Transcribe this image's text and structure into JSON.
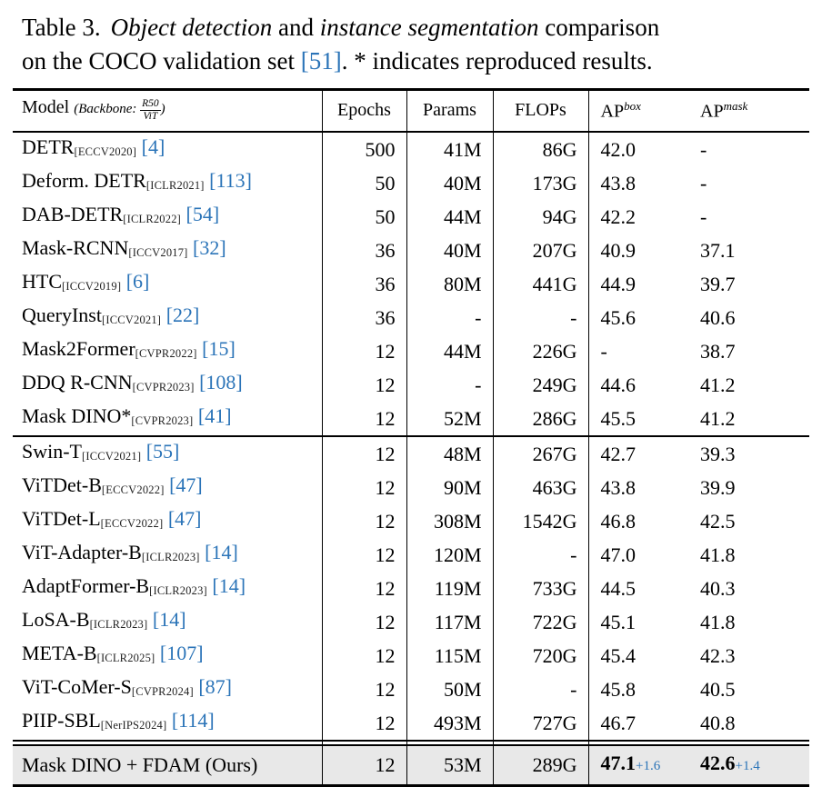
{
  "caption": {
    "label": "Table 3.",
    "line1_italic1": "Object detection",
    "line1_mid": "and",
    "line1_italic2": "instance segmentation",
    "line1_end": "comparison",
    "line2_start": "on the COCO validation set",
    "cite": "[51]",
    "line2_end": ". * indicates reproduced results."
  },
  "header": {
    "model_label": "Model",
    "backbone_italic": "(Backbone:",
    "frac_num": "R50",
    "frac_den": "ViT",
    "backbone_close": ")",
    "epochs": "Epochs",
    "params": "Params",
    "flops": "FLOPs",
    "ap_box_base": "AP",
    "ap_box_sup": "box",
    "ap_mask_base": "AP",
    "ap_mask_sup": "mask"
  },
  "colors": {
    "cite_blue": "#2b74b8",
    "gain_blue": "#2b74b8",
    "highlight_row_bg": "#e8e8e8"
  },
  "groups": [
    {
      "rows": [
        {
          "name": "DETR",
          "venue": "[ECCV2020]",
          "cite": "[4]",
          "epochs": "500",
          "params": "41M",
          "flops": "86G",
          "ap_box": "42.0",
          "ap_mask": "-"
        },
        {
          "name": "Deform. DETR",
          "venue": "[ICLR2021]",
          "cite": "[113]",
          "epochs": "50",
          "params": "40M",
          "flops": "173G",
          "ap_box": "43.8",
          "ap_mask": "-"
        },
        {
          "name": "DAB-DETR",
          "venue": "[ICLR2022]",
          "cite": "[54]",
          "epochs": "50",
          "params": "44M",
          "flops": "94G",
          "ap_box": "42.2",
          "ap_mask": "-"
        },
        {
          "name": "Mask-RCNN",
          "venue": "[ICCV2017]",
          "cite": "[32]",
          "epochs": "36",
          "params": "40M",
          "flops": "207G",
          "ap_box": "40.9",
          "ap_mask": "37.1"
        },
        {
          "name": "HTC",
          "venue": "[ICCV2019]",
          "cite": "[6]",
          "epochs": "36",
          "params": "80M",
          "flops": "441G",
          "ap_box": "44.9",
          "ap_mask": "39.7"
        },
        {
          "name": "QueryInst",
          "venue": "[ICCV2021]",
          "cite": "[22]",
          "epochs": "36",
          "params": "-",
          "flops": "-",
          "ap_box": "45.6",
          "ap_mask": "40.6"
        },
        {
          "name": "Mask2Former",
          "venue": "[CVPR2022]",
          "cite": "[15]",
          "epochs": "12",
          "params": "44M",
          "flops": "226G",
          "ap_box": "-",
          "ap_mask": "38.7"
        },
        {
          "name": "DDQ R-CNN",
          "venue": "[CVPR2023]",
          "cite": "[108]",
          "epochs": "12",
          "params": "-",
          "flops": "249G",
          "ap_box": "44.6",
          "ap_mask": "41.2"
        },
        {
          "name": "Mask DINO*",
          "venue": "[CVPR2023]",
          "cite": "[41]",
          "epochs": "12",
          "params": "52M",
          "flops": "286G",
          "ap_box": "45.5",
          "ap_mask": "41.2"
        }
      ]
    },
    {
      "rows": [
        {
          "name": "Swin-T",
          "venue": "[ICCV2021]",
          "cite": "[55]",
          "epochs": "12",
          "params": "48M",
          "flops": "267G",
          "ap_box": "42.7",
          "ap_mask": "39.3"
        },
        {
          "name": "ViTDet-B",
          "venue": "[ECCV2022]",
          "cite": "[47]",
          "epochs": "12",
          "params": "90M",
          "flops": "463G",
          "ap_box": "43.8",
          "ap_mask": "39.9"
        },
        {
          "name": "ViTDet-L",
          "venue": "[ECCV2022]",
          "cite": "[47]",
          "epochs": "12",
          "params": "308M",
          "flops": "1542G",
          "ap_box": "46.8",
          "ap_mask": "42.5"
        },
        {
          "name": "ViT-Adapter-B",
          "venue": "[ICLR2023]",
          "cite": "[14]",
          "epochs": "12",
          "params": "120M",
          "flops": "-",
          "ap_box": "47.0",
          "ap_mask": "41.8"
        },
        {
          "name": "AdaptFormer-B",
          "venue": "[ICLR2023]",
          "cite": "[14]",
          "epochs": "12",
          "params": "119M",
          "flops": "733G",
          "ap_box": "44.5",
          "ap_mask": "40.3"
        },
        {
          "name": "LoSA-B",
          "venue": "[ICLR2023]",
          "cite": "[14]",
          "epochs": "12",
          "params": "117M",
          "flops": "722G",
          "ap_box": "45.1",
          "ap_mask": "41.8"
        },
        {
          "name": "META-B",
          "venue": "[ICLR2025]",
          "cite": "[107]",
          "epochs": "12",
          "params": "115M",
          "flops": "720G",
          "ap_box": "45.4",
          "ap_mask": "42.3"
        },
        {
          "name": "ViT-CoMer-S",
          "venue": "[CVPR2024]",
          "cite": "[87]",
          "epochs": "12",
          "params": "50M",
          "flops": "-",
          "ap_box": "45.8",
          "ap_mask": "40.5"
        },
        {
          "name": "PIIP-SBL",
          "venue": "[NerIPS2024]",
          "cite": "[114]",
          "epochs": "12",
          "params": "493M",
          "flops": "727G",
          "ap_box": "46.7",
          "ap_mask": "40.8"
        }
      ]
    }
  ],
  "final_row": {
    "name": "Mask DINO + FDAM (Ours)",
    "epochs": "12",
    "params": "53M",
    "flops": "289G",
    "ap_box": "47.1",
    "ap_box_gain": "+1.6",
    "ap_mask": "42.6",
    "ap_mask_gain": "+1.4"
  }
}
